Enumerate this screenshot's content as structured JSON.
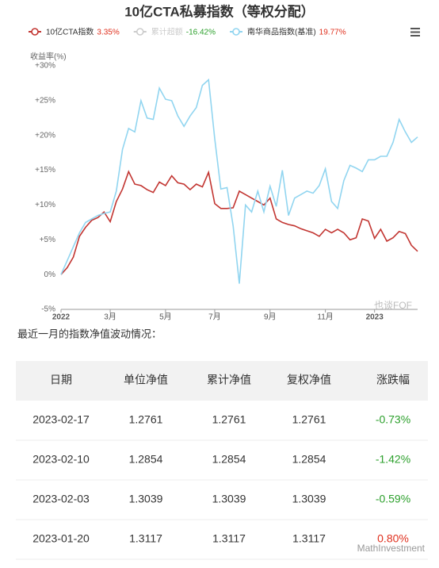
{
  "chart_data": {
    "type": "line",
    "title": "10亿CTA私募指数（等权分配）",
    "y_axis_label": "收益率(%)",
    "categories": [
      "2022",
      null,
      null,
      null,
      null,
      null,
      null,
      null,
      "3月",
      null,
      null,
      null,
      null,
      null,
      null,
      null,
      null,
      "5月",
      null,
      null,
      null,
      null,
      null,
      null,
      null,
      "7月",
      null,
      null,
      null,
      null,
      null,
      null,
      null,
      null,
      "9月",
      null,
      null,
      null,
      null,
      null,
      null,
      null,
      null,
      "11月",
      null,
      null,
      null,
      null,
      null,
      null,
      null,
      "2023",
      null,
      null,
      null,
      null,
      null,
      null,
      null
    ],
    "series": [
      {
        "name": "10亿CTA指数",
        "legend_value": "3.35%",
        "color": "#c23531",
        "values": [
          0,
          1,
          2.5,
          5.5,
          6.8,
          7.8,
          8.2,
          9,
          7.6,
          10.5,
          12.3,
          14.8,
          13,
          12.8,
          12.2,
          11.8,
          13.3,
          12.8,
          14.2,
          13.2,
          13,
          12.2,
          13,
          12.6,
          14.7,
          10.2,
          9.5,
          9.5,
          9.6,
          12,
          11.5,
          11,
          10.5,
          10,
          11,
          8,
          7.5,
          7.2,
          7,
          6.6,
          6.3,
          6,
          5.5,
          6.5,
          6,
          6.5,
          6,
          5,
          5.3,
          8,
          7.7,
          5.2,
          6.5,
          4.8,
          5.3,
          6.2,
          5.9,
          4.2,
          3.35
        ]
      },
      {
        "name": "累计超额",
        "legend_value": "-16.42%",
        "color": "#cccccc",
        "hidden": true
      },
      {
        "name": "南华商品指数(基准)",
        "legend_value": "19.77%",
        "color": "#91d5f0",
        "values": [
          0,
          2,
          4,
          6,
          7.5,
          8,
          8.5,
          8.8,
          9,
          12,
          18,
          21,
          20.5,
          25,
          22.5,
          22.3,
          26.8,
          25.2,
          25,
          22.8,
          21.3,
          22.8,
          24,
          27.2,
          28,
          19.5,
          12.3,
          12.5,
          7,
          -1.3,
          10,
          9,
          12,
          9,
          12.7,
          9.8,
          15,
          8.5,
          11,
          11.5,
          12,
          11.7,
          12.8,
          15.2,
          10.5,
          9.5,
          13.5,
          15.7,
          15.3,
          14.8,
          16.5,
          16.5,
          17,
          17,
          19,
          22.3,
          20.5,
          19,
          19.77
        ]
      }
    ],
    "ylim": [
      -5,
      30
    ],
    "yticks": [
      {
        "value": -5,
        "label": "-5%"
      },
      {
        "value": 0,
        "label": "0%"
      },
      {
        "value": 5,
        "label": "+5%"
      },
      {
        "value": 10,
        "label": "+10%"
      },
      {
        "value": 15,
        "label": "+15%"
      },
      {
        "value": 20,
        "label": "+20%"
      },
      {
        "value": 25,
        "label": "+25%"
      },
      {
        "value": 30,
        "label": "+30%"
      }
    ],
    "grid": false,
    "watermark": "也谈FOF"
  },
  "caption": "最近一月的指数净值波动情况：",
  "table": {
    "header": [
      "日期",
      "单位净值",
      "累计净值",
      "复权净值",
      "涨跌幅"
    ],
    "rows": [
      [
        "2023-02-17",
        "1.2761",
        "1.2761",
        "1.2761",
        "-0.73%"
      ],
      [
        "2023-02-10",
        "1.2854",
        "1.2854",
        "1.2854",
        "-1.42%"
      ],
      [
        "2023-02-03",
        "1.3039",
        "1.3039",
        "1.3039",
        "-0.59%"
      ],
      [
        "2023-01-20",
        "1.3117",
        "1.3117",
        "1.3117",
        "0.80%"
      ]
    ]
  },
  "watermark": "MathInvestment"
}
